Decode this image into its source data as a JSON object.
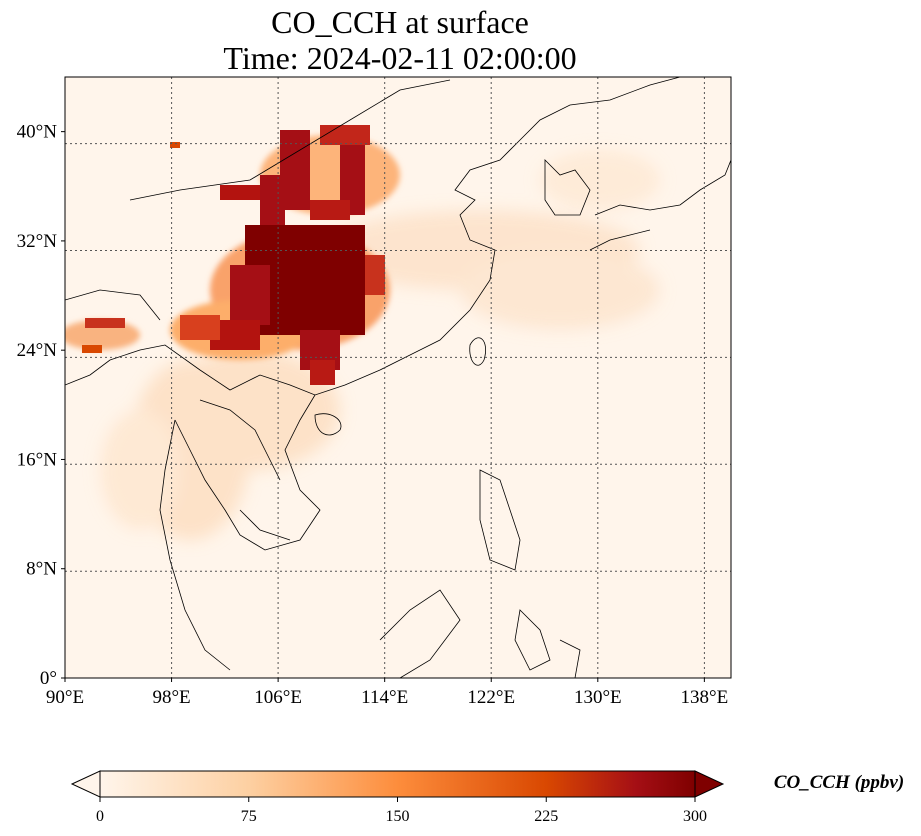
{
  "title": {
    "line1": "CO_CCH at surface",
    "line2": "Time: 2024-02-11 02:00:00"
  },
  "map": {
    "lon_range": [
      90,
      140
    ],
    "lat_range": [
      0,
      44
    ],
    "gridlines": "dotted",
    "x_ticks": [
      {
        "value": 90,
        "label": "90°E"
      },
      {
        "value": 98,
        "label": "98°E"
      },
      {
        "value": 106,
        "label": "106°E"
      },
      {
        "value": 114,
        "label": "114°E"
      },
      {
        "value": 122,
        "label": "122°E"
      },
      {
        "value": 130,
        "label": "130°E"
      },
      {
        "value": 138,
        "label": "138°E"
      }
    ],
    "y_ticks": [
      {
        "value": 0,
        "label": "0°"
      },
      {
        "value": 8,
        "label": "8°N"
      },
      {
        "value": 16,
        "label": "16°N"
      },
      {
        "value": 24,
        "label": "24°N"
      },
      {
        "value": 32,
        "label": "32°N"
      },
      {
        "value": 40,
        "label": "40°N"
      }
    ]
  },
  "colorbar": {
    "title": "CO_CCH (ppbv)",
    "ticks": [
      {
        "value": 0,
        "label": "0"
      },
      {
        "value": 75,
        "label": "75"
      },
      {
        "value": 150,
        "label": "150"
      },
      {
        "value": 225,
        "label": "225"
      },
      {
        "value": 300,
        "label": "300"
      }
    ],
    "range": [
      0,
      300
    ],
    "extend": "both",
    "colors": [
      "#fff5eb",
      "#fdd0a2",
      "#fd8d3c",
      "#d94801",
      "#a50f15",
      "#7f0000"
    ]
  }
}
